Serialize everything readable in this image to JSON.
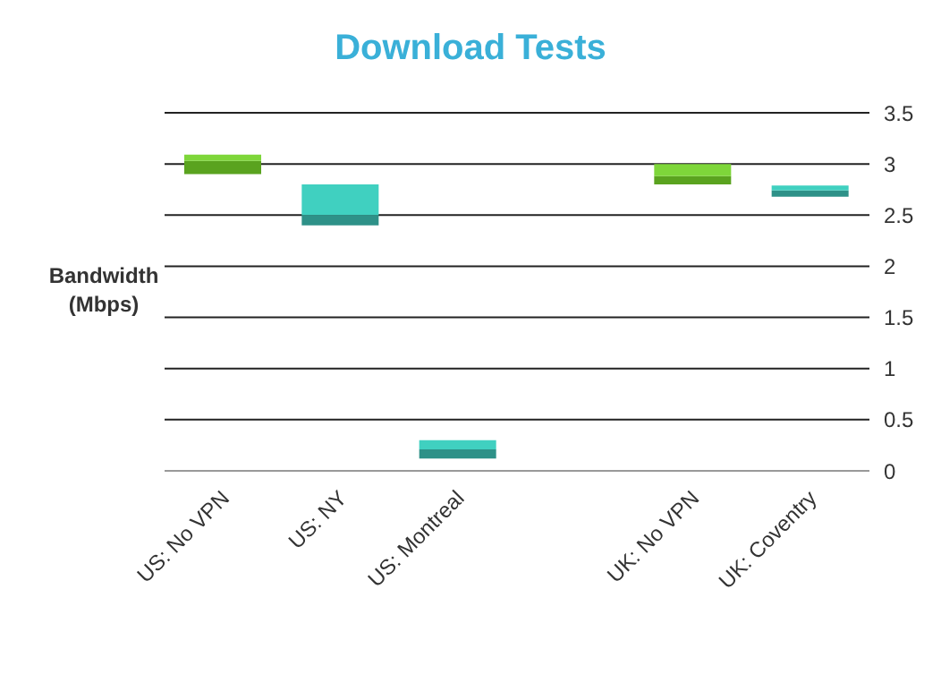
{
  "chart_data": {
    "type": "bar",
    "title": "Download Tests",
    "ylabel": "Bandwidth (Mbps)",
    "categories": [
      "US: No VPN",
      "US: NY",
      "US: Montreal",
      null,
      "UK: No VPN",
      "UK: Coventry"
    ],
    "series": [
      {
        "colors": [
          "#5aa31f",
          "#2e9188",
          "#2e9188",
          null,
          "#5aa31f",
          "#2e9188"
        ],
        "base": [
          2.9,
          2.4,
          0.12,
          null,
          2.8,
          2.68
        ],
        "values": [
          0.13,
          0.1,
          0.09,
          null,
          0.08,
          0.06
        ]
      },
      {
        "colors": [
          "#7ed63a",
          "#40d0c0",
          "#40d0c0",
          null,
          "#7ed63a",
          "#40d0c0"
        ],
        "base": [
          3.03,
          2.5,
          0.21,
          null,
          2.88,
          2.74
        ],
        "values": [
          0.06,
          0.3,
          0.09,
          null,
          0.12,
          0.05
        ]
      }
    ],
    "ylim": [
      0,
      3.5
    ],
    "yticks": [
      0,
      0.5,
      1,
      1.5,
      2,
      2.5,
      3,
      3.5
    ],
    "grid": "y",
    "legend": false
  }
}
